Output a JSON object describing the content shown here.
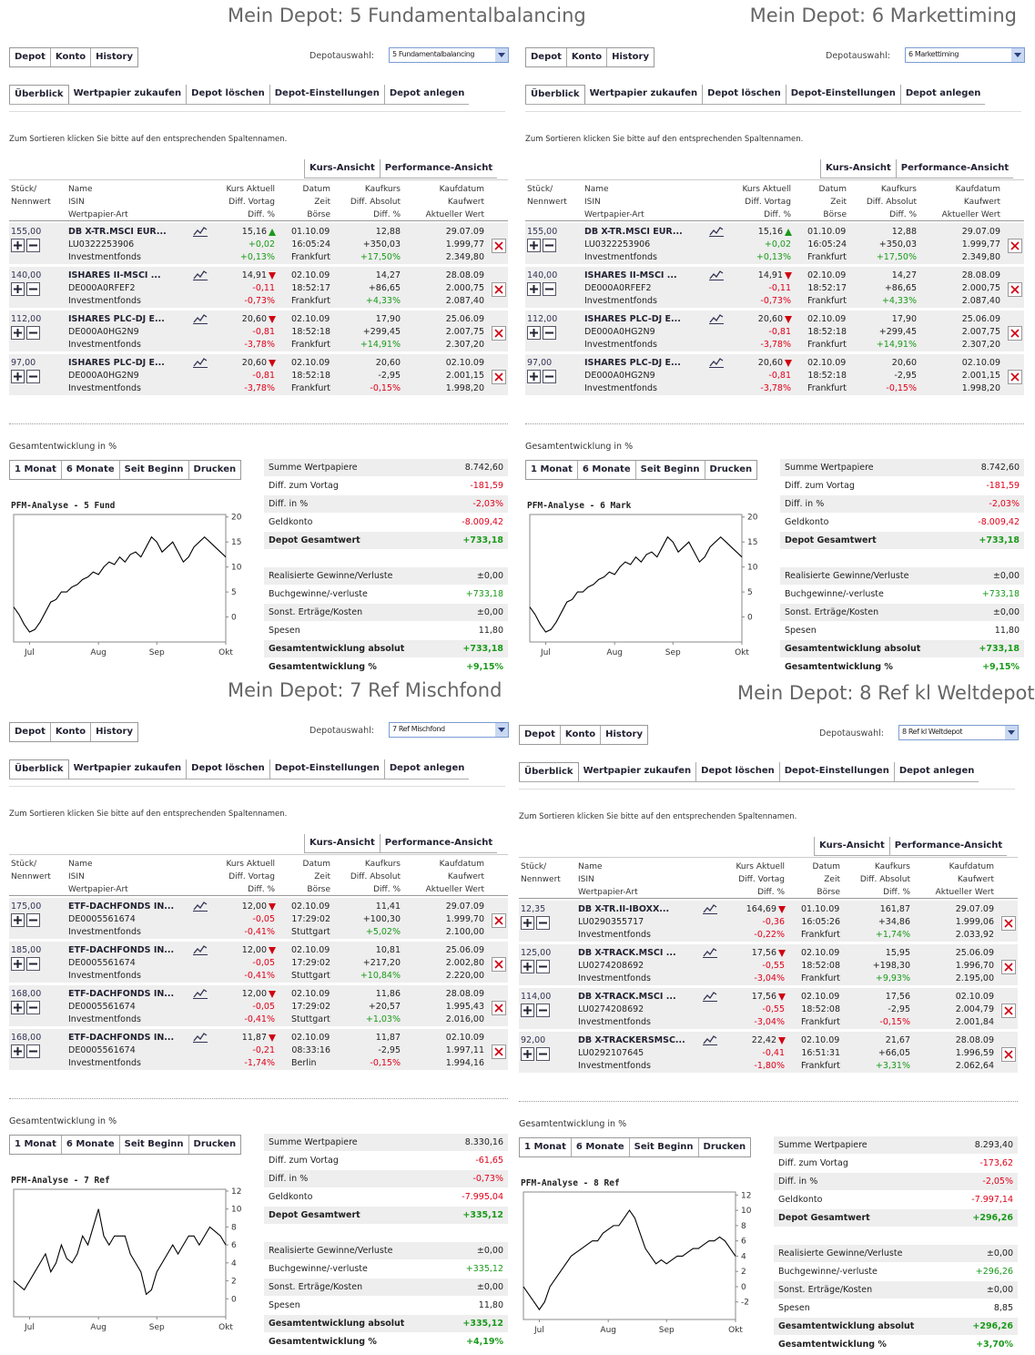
{
  "common": {
    "tabs1": [
      "Depot",
      "Konto",
      "History"
    ],
    "depotauswahl": "Depotauswahl:",
    "tabs2": [
      "Überblick",
      "Wertpapier zukaufen",
      "Depot löschen",
      "Depot-Einstellungen",
      "Depot anlegen"
    ],
    "sort_hint": "Zum Sortieren klicken Sie bitte auf den entsprechenden Spaltennamen.",
    "view_tabs": [
      "Kurs-Ansicht",
      "Performance-Ansicht"
    ],
    "headers": [
      [
        "Stück/",
        "Nennwert"
      ],
      [
        "Name",
        "ISIN",
        "Wertpapier-Art"
      ],
      [
        "Kurs Aktuell",
        "Diff. Vortag",
        "Diff. %"
      ],
      [
        "Datum",
        "Zeit",
        "Börse"
      ],
      [
        "Kaufkurs",
        "Diff. Absolut",
        "Diff. %"
      ],
      [
        "Kaufdatum",
        "Kaufwert",
        "Aktueller Wert"
      ]
    ],
    "section": "Gesamtentwicklung in %",
    "range_buttons": [
      "1 Monat",
      "6 Monate",
      "Seit Beginn",
      "Drucken"
    ],
    "summary_labels": [
      "Summe Wertpapiere",
      "Diff. zum Vortag",
      "Diff. in %",
      "Geldkonto",
      "Depot Gesamtwert"
    ],
    "summary2_labels": [
      "Realisierte Gewinne/Verluste",
      "Buchgewinne/-verluste",
      "Sonst. Erträge/Kosten",
      "Spesen",
      "Gesamtentwicklung absolut",
      "Gesamtentwicklung %"
    ]
  },
  "panels": [
    {
      "title": "Mein Depot: 5 Fundamentalbalancing",
      "select": "5 Fundamentalbalancing",
      "rows": [
        {
          "qty": "155,00",
          "name": "DB X-TR.MSCI EUR...",
          "isin": "LU0322253906",
          "kind": "Investmentfonds",
          "price": "15,16",
          "trend": "up",
          "diff": "+0,02",
          "diff_pct": "+0,13%",
          "date": "01.10.09",
          "time": "16:05:24",
          "exchange": "Frankfurt",
          "buy_price": "12,88",
          "diff_abs": "+350,03",
          "diff_abs_pct": "+17,50%",
          "buy_date": "29.07.09",
          "buy_value": "1.999,77",
          "current_value": "2.349,80"
        },
        {
          "qty": "140,00",
          "name": "ISHARES II-MSCI ...",
          "isin": "DE000A0RFEF2",
          "kind": "Investmentfonds",
          "price": "14,91",
          "trend": "down",
          "diff": "-0,11",
          "diff_pct": "-0,73%",
          "date": "02.10.09",
          "time": "18:52:17",
          "exchange": "Frankfurt",
          "buy_price": "14,27",
          "diff_abs": "+86,65",
          "diff_abs_pct": "+4,33%",
          "buy_date": "28.08.09",
          "buy_value": "2.000,75",
          "current_value": "2.087,40"
        },
        {
          "qty": "112,00",
          "name": "ISHARES PLC-DJ E...",
          "isin": "DE000A0HG2N9",
          "kind": "Investmentfonds",
          "price": "20,60",
          "trend": "down",
          "diff": "-0,81",
          "diff_pct": "-3,78%",
          "date": "02.10.09",
          "time": "18:52:18",
          "exchange": "Frankfurt",
          "buy_price": "17,90",
          "diff_abs": "+299,45",
          "diff_abs_pct": "+14,91%",
          "buy_date": "25.06.09",
          "buy_value": "2.007,75",
          "current_value": "2.307,20"
        },
        {
          "qty": "97,00",
          "name": "ISHARES PLC-DJ E...",
          "isin": "DE000A0HG2N9",
          "kind": "Investmentfonds",
          "price": "20,60",
          "trend": "down",
          "diff": "-0,81",
          "diff_pct": "-3,78%",
          "date": "02.10.09",
          "time": "18:52:18",
          "exchange": "Frankfurt",
          "buy_price": "20,60",
          "diff_abs": "-2,95",
          "diff_abs_pct": "-0,15%",
          "buy_date": "02.10.09",
          "buy_value": "2.001,15",
          "current_value": "1.998,20"
        }
      ],
      "summary": [
        "8.742,60",
        "-181,59",
        "-2,03%",
        "-8.009,42",
        "+733,18"
      ],
      "summary2": [
        "±0,00",
        "+733,18",
        "±0,00",
        "11,80",
        "+733,18",
        "+9,15%"
      ],
      "chart": {
        "type": "line",
        "title": "PFM-Analyse - 5 Fund",
        "categories": [
          null,
          null,
          null,
          "Jul",
          null,
          null,
          null,
          null,
          null,
          null,
          null,
          null,
          null,
          null,
          null,
          null,
          "Aug",
          null,
          null,
          null,
          null,
          null,
          null,
          null,
          null,
          null,
          null,
          "Sep",
          null,
          null,
          null,
          null,
          null,
          null,
          null,
          null,
          null,
          null,
          null,
          null,
          "Okt"
        ],
        "values": [
          2,
          0.5,
          -1.5,
          -3,
          -2.5,
          -1,
          1,
          3,
          3.5,
          5,
          5,
          6,
          6.5,
          7.5,
          8,
          9,
          8.5,
          10,
          11,
          10.5,
          12,
          11,
          12.5,
          13,
          12,
          14,
          16,
          15,
          13,
          14,
          15,
          13,
          11,
          12,
          14,
          15,
          16,
          15,
          14,
          13,
          12
        ],
        "ylim": [
          -5,
          20.5
        ],
        "yticks": [
          0,
          5,
          10,
          15,
          20
        ]
      }
    },
    {
      "title": "Mein Depot: 6 Markettiming",
      "select": "6 Markettiming",
      "rows": [
        {
          "qty": "155,00",
          "name": "DB X-TR.MSCI EUR...",
          "isin": "LU0322253906",
          "kind": "Investmentfonds",
          "price": "15,16",
          "trend": "up",
          "diff": "+0,02",
          "diff_pct": "+0,13%",
          "date": "01.10.09",
          "time": "16:05:24",
          "exchange": "Frankfurt",
          "buy_price": "12,88",
          "diff_abs": "+350,03",
          "diff_abs_pct": "+17,50%",
          "buy_date": "29.07.09",
          "buy_value": "1.999,77",
          "current_value": "2.349,80"
        },
        {
          "qty": "140,00",
          "name": "ISHARES II-MSCI ...",
          "isin": "DE000A0RFEF2",
          "kind": "Investmentfonds",
          "price": "14,91",
          "trend": "down",
          "diff": "-0,11",
          "diff_pct": "-0,73%",
          "date": "02.10.09",
          "time": "18:52:17",
          "exchange": "Frankfurt",
          "buy_price": "14,27",
          "diff_abs": "+86,65",
          "diff_abs_pct": "+4,33%",
          "buy_date": "28.08.09",
          "buy_value": "2.000,75",
          "current_value": "2.087,40"
        },
        {
          "qty": "112,00",
          "name": "ISHARES PLC-DJ E...",
          "isin": "DE000A0HG2N9",
          "kind": "Investmentfonds",
          "price": "20,60",
          "trend": "down",
          "diff": "-0,81",
          "diff_pct": "-3,78%",
          "date": "02.10.09",
          "time": "18:52:18",
          "exchange": "Frankfurt",
          "buy_price": "17,90",
          "diff_abs": "+299,45",
          "diff_abs_pct": "+14,91%",
          "buy_date": "25.06.09",
          "buy_value": "2.007,75",
          "current_value": "2.307,20"
        },
        {
          "qty": "97,00",
          "name": "ISHARES PLC-DJ E...",
          "isin": "DE000A0HG2N9",
          "kind": "Investmentfonds",
          "price": "20,60",
          "trend": "down",
          "diff": "-0,81",
          "diff_pct": "-3,78%",
          "date": "02.10.09",
          "time": "18:52:18",
          "exchange": "Frankfurt",
          "buy_price": "20,60",
          "diff_abs": "-2,95",
          "diff_abs_pct": "-0,15%",
          "buy_date": "02.10.09",
          "buy_value": "2.001,15",
          "current_value": "1.998,20"
        }
      ],
      "summary": [
        "8.742,60",
        "-181,59",
        "-2,03%",
        "-8.009,42",
        "+733,18"
      ],
      "summary2": [
        "±0,00",
        "+733,18",
        "±0,00",
        "11,80",
        "+733,18",
        "+9,15%"
      ],
      "chart": {
        "type": "line",
        "title": "PFM-Analyse - 6 Mark",
        "categories": [
          null,
          null,
          null,
          "Jul",
          null,
          null,
          null,
          null,
          null,
          null,
          null,
          null,
          null,
          null,
          null,
          null,
          "Aug",
          null,
          null,
          null,
          null,
          null,
          null,
          null,
          null,
          null,
          null,
          "Sep",
          null,
          null,
          null,
          null,
          null,
          null,
          null,
          null,
          null,
          null,
          null,
          null,
          "Okt"
        ],
        "values": [
          2,
          0.5,
          -1.5,
          -3,
          -2.5,
          -1,
          1,
          3,
          3.5,
          5,
          5,
          6,
          6.5,
          7.5,
          8,
          9,
          8.5,
          10,
          11,
          10.5,
          12,
          11,
          12.5,
          13,
          12,
          14,
          16,
          15,
          13,
          14,
          15,
          13,
          11,
          12,
          14,
          15,
          16,
          15,
          14,
          13,
          12
        ],
        "ylim": [
          -5,
          20.5
        ],
        "yticks": [
          0,
          5,
          10,
          15,
          20
        ]
      }
    },
    {
      "title": "Mein Depot: 7 Ref Mischfond",
      "select": "7 Ref Mischfond",
      "rows": [
        {
          "qty": "175,00",
          "name": "ETF-DACHFONDS IN...",
          "isin": "DE0005561674",
          "kind": "Investmentfonds",
          "price": "12,00",
          "trend": "down",
          "diff": "-0,05",
          "diff_pct": "-0,41%",
          "date": "02.10.09",
          "time": "17:29:02",
          "exchange": "Stuttgart",
          "buy_price": "11,41",
          "diff_abs": "+100,30",
          "diff_abs_pct": "+5,02%",
          "buy_date": "29.07.09",
          "buy_value": "1.999,70",
          "current_value": "2.100,00"
        },
        {
          "qty": "185,00",
          "name": "ETF-DACHFONDS IN...",
          "isin": "DE0005561674",
          "kind": "Investmentfonds",
          "price": "12,00",
          "trend": "down",
          "diff": "-0,05",
          "diff_pct": "-0,41%",
          "date": "02.10.09",
          "time": "17:29:02",
          "exchange": "Stuttgart",
          "buy_price": "10,81",
          "diff_abs": "+217,20",
          "diff_abs_pct": "+10,84%",
          "buy_date": "25.06.09",
          "buy_value": "2.002,80",
          "current_value": "2.220,00"
        },
        {
          "qty": "168,00",
          "name": "ETF-DACHFONDS IN...",
          "isin": "DE0005561674",
          "kind": "Investmentfonds",
          "price": "12,00",
          "trend": "down",
          "diff": "-0,05",
          "diff_pct": "-0,41%",
          "date": "02.10.09",
          "time": "17:29:02",
          "exchange": "Stuttgart",
          "buy_price": "11,86",
          "diff_abs": "+20,57",
          "diff_abs_pct": "+1,03%",
          "buy_date": "28.08.09",
          "buy_value": "1.995,43",
          "current_value": "2.016,00"
        },
        {
          "qty": "168,00",
          "name": "ETF-DACHFONDS IN...",
          "isin": "DE0005561674",
          "kind": "Investmentfonds",
          "price": "11,87",
          "trend": "down",
          "diff": "-0,21",
          "diff_pct": "-1,74%",
          "date": "02.10.09",
          "time": "08:33:16",
          "exchange": "Berlin",
          "buy_price": "11,87",
          "diff_abs": "-2,95",
          "diff_abs_pct": "-0,15%",
          "buy_date": "02.10.09",
          "buy_value": "1.997,11",
          "current_value": "1.994,16"
        }
      ],
      "summary": [
        "8.330,16",
        "-61,65",
        "-0,73%",
        "-7.995,04",
        "+335,12"
      ],
      "summary2": [
        "±0,00",
        "+335,12",
        "±0,00",
        "11,80",
        "+335,12",
        "+4,19%"
      ],
      "chart": {
        "type": "line",
        "title": "PFM-Analyse - 7 Ref",
        "categories": [
          null,
          null,
          null,
          "Jul",
          null,
          null,
          null,
          null,
          null,
          null,
          null,
          null,
          null,
          null,
          null,
          null,
          "Aug",
          null,
          null,
          null,
          null,
          null,
          null,
          null,
          null,
          null,
          null,
          "Sep",
          null,
          null,
          null,
          null,
          null,
          null,
          null,
          null,
          null,
          null,
          null,
          null,
          "Okt"
        ],
        "values": [
          2,
          1.5,
          1,
          2,
          3,
          4,
          5,
          3,
          4,
          6,
          4.5,
          4,
          5,
          7,
          6,
          8,
          10,
          7,
          6,
          7,
          7,
          7,
          5,
          4,
          3,
          0.5,
          1,
          3,
          4,
          5,
          6,
          5,
          6,
          7,
          7,
          6,
          7,
          8,
          7.5,
          7,
          6
        ],
        "ylim": [
          -2,
          12.2
        ],
        "yticks": [
          0,
          2,
          4,
          6,
          8,
          10,
          12
        ]
      }
    },
    {
      "title": "Mein Depot: 8 Ref kl Weltdepot",
      "select": "8 Ref kl Weltdepot",
      "rows": [
        {
          "qty": "12,35",
          "name": "DB X-TR.II-IBOXX...",
          "isin": "LU0290355717",
          "kind": "Investmentfonds",
          "price": "164,69",
          "trend": "down",
          "diff": "-0,36",
          "diff_pct": "-0,22%",
          "date": "01.10.09",
          "time": "16:05:26",
          "exchange": "Frankfurt",
          "buy_price": "161,87",
          "diff_abs": "+34,86",
          "diff_abs_pct": "+1,74%",
          "buy_date": "29.07.09",
          "buy_value": "1.999,06",
          "current_value": "2.033,92"
        },
        {
          "qty": "125,00",
          "name": "DB X-TRACK.MSCI ...",
          "isin": "LU0274208692",
          "kind": "Investmentfonds",
          "price": "17,56",
          "trend": "down",
          "diff": "-0,55",
          "diff_pct": "-3,04%",
          "date": "02.10.09",
          "time": "18:52:08",
          "exchange": "Frankfurt",
          "buy_price": "15,95",
          "diff_abs": "+198,30",
          "diff_abs_pct": "+9,93%",
          "buy_date": "25.06.09",
          "buy_value": "1.996,70",
          "current_value": "2.195,00"
        },
        {
          "qty": "114,00",
          "name": "DB X-TRACK.MSCI ...",
          "isin": "LU0274208692",
          "kind": "Investmentfonds",
          "price": "17,56",
          "trend": "down",
          "diff": "-0,55",
          "diff_pct": "-3,04%",
          "date": "02.10.09",
          "time": "18:52:08",
          "exchange": "Frankfurt",
          "buy_price": "17,56",
          "diff_abs": "-2,95",
          "diff_abs_pct": "-0,15%",
          "buy_date": "02.10.09",
          "buy_value": "2.004,79",
          "current_value": "2.001,84"
        },
        {
          "qty": "92,00",
          "name": "DB X-TRACKERSMSC...",
          "isin": "LU0292107645",
          "kind": "Investmentfonds",
          "price": "22,42",
          "trend": "down",
          "diff": "-0,41",
          "diff_pct": "-1,80%",
          "date": "02.10.09",
          "time": "16:51:31",
          "exchange": "Frankfurt",
          "buy_price": "21,67",
          "diff_abs": "+66,05",
          "diff_abs_pct": "+3,31%",
          "buy_date": "28.08.09",
          "buy_value": "1.996,59",
          "current_value": "2.062,64"
        }
      ],
      "summary": [
        "8.293,40",
        "-173,62",
        "-2,05%",
        "-7.997,14",
        "+296,26"
      ],
      "summary2": [
        "±0,00",
        "+296,26",
        "±0,00",
        "8,85",
        "+296,26",
        "+3,70%"
      ],
      "chart": {
        "type": "line",
        "title": "PFM-Analyse - 8 Ref",
        "categories": [
          null,
          null,
          null,
          "Jul",
          null,
          null,
          null,
          null,
          null,
          null,
          null,
          null,
          null,
          null,
          null,
          null,
          "Aug",
          null,
          null,
          null,
          null,
          null,
          null,
          null,
          null,
          null,
          null,
          "Sep",
          null,
          null,
          null,
          null,
          null,
          null,
          null,
          null,
          null,
          null,
          null,
          null,
          "Okt"
        ],
        "values": [
          0,
          -1,
          -2,
          -3,
          -2,
          0,
          1,
          2,
          3,
          4,
          4.5,
          5,
          5.5,
          6,
          6,
          7,
          7.5,
          8,
          8,
          9,
          10,
          9,
          7,
          5,
          4,
          3,
          3.5,
          3,
          3.5,
          4,
          4,
          4.5,
          5,
          5,
          5.5,
          6,
          6,
          6.5,
          6,
          5,
          4
        ],
        "ylim": [
          -4.3,
          12.4
        ],
        "yticks": [
          -2,
          0,
          2,
          4,
          6,
          8,
          10,
          12
        ]
      }
    }
  ]
}
